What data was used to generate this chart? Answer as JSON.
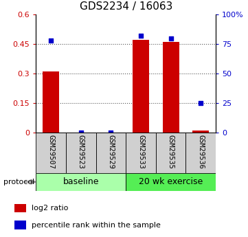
{
  "title": "GDS2234 / 16063",
  "samples": [
    "GSM29507",
    "GSM29523",
    "GSM29529",
    "GSM29533",
    "GSM29535",
    "GSM29536"
  ],
  "log2_ratio": [
    0.31,
    0.0,
    0.0,
    0.47,
    0.46,
    0.01
  ],
  "percentile_rank": [
    78.0,
    0.0,
    0.0,
    82.0,
    79.5,
    25.0
  ],
  "bar_color": "#cc0000",
  "dot_color": "#0000cc",
  "ylim_left": [
    0,
    0.6
  ],
  "ylim_right": [
    0,
    100
  ],
  "yticks_left": [
    0,
    0.15,
    0.3,
    0.45,
    0.6
  ],
  "yticks_right": [
    0,
    25,
    50,
    75,
    100
  ],
  "ytick_labels_left": [
    "0",
    "0.15",
    "0.3",
    "0.45",
    "0.6"
  ],
  "ytick_labels_right": [
    "0",
    "25",
    "50",
    "75",
    "100%"
  ],
  "groups": [
    {
      "label": "baseline",
      "start": 0,
      "end": 3,
      "color": "#aaffaa"
    },
    {
      "label": "20 wk exercise",
      "start": 3,
      "end": 6,
      "color": "#55ee55"
    }
  ],
  "protocol_label": "protocol",
  "legend_items": [
    {
      "color": "#cc0000",
      "label": "log2 ratio"
    },
    {
      "color": "#0000cc",
      "label": "percentile rank within the sample"
    }
  ],
  "dotted_line_color": "#555555",
  "background_color": "#ffffff",
  "title_fontsize": 11,
  "tick_fontsize": 8,
  "sample_label_fontsize": 7.5,
  "group_label_fontsize": 9
}
